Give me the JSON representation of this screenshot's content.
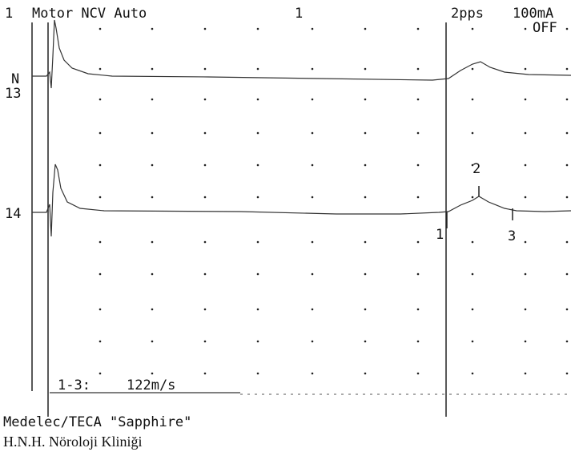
{
  "header": {
    "channel": "1",
    "mode": "Motor NCV Auto",
    "sweep": "1",
    "rate": "2pps",
    "current": "100mA",
    "filter": "OFF"
  },
  "traces": [
    {
      "label": "13",
      "side": "N"
    },
    {
      "label": "14"
    }
  ],
  "markers": [
    "1",
    "2",
    "3"
  ],
  "measurement": {
    "label": "1-3:",
    "value": "122m/s"
  },
  "footer": {
    "device": "Medelec/TECA \"Sapphire\"",
    "clinic": "H.N.H. Nöroloji Kliniği"
  }
}
